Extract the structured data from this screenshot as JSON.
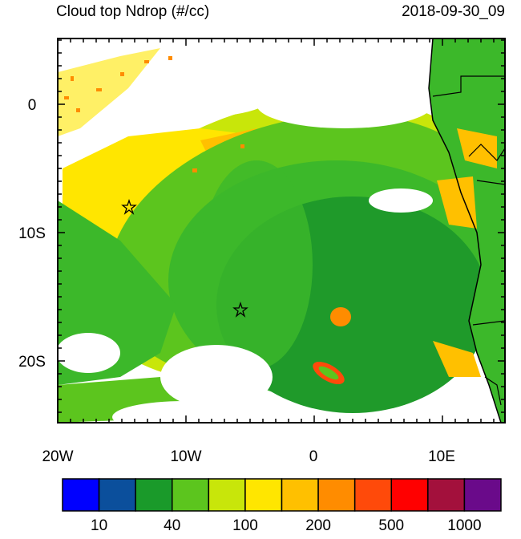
{
  "title": "Cloud top Ndrop (#/cc)",
  "timestamp": "2018-09-30_09",
  "lat_labels": [
    "0",
    "10S",
    "20S"
  ],
  "lon_labels": [
    "20W",
    "10W",
    "0",
    "10E"
  ],
  "colorbar": {
    "colors": [
      "#0000ff",
      "#0b4f9c",
      "#1a9a2a",
      "#5cc51e",
      "#c8e60a",
      "#ffe600",
      "#ffc000",
      "#ff8c00",
      "#ff4a0a",
      "#ff0000",
      "#a3103c",
      "#6a0a8a"
    ],
    "labels": [
      10,
      40,
      100,
      200,
      500,
      1000
    ]
  }
}
